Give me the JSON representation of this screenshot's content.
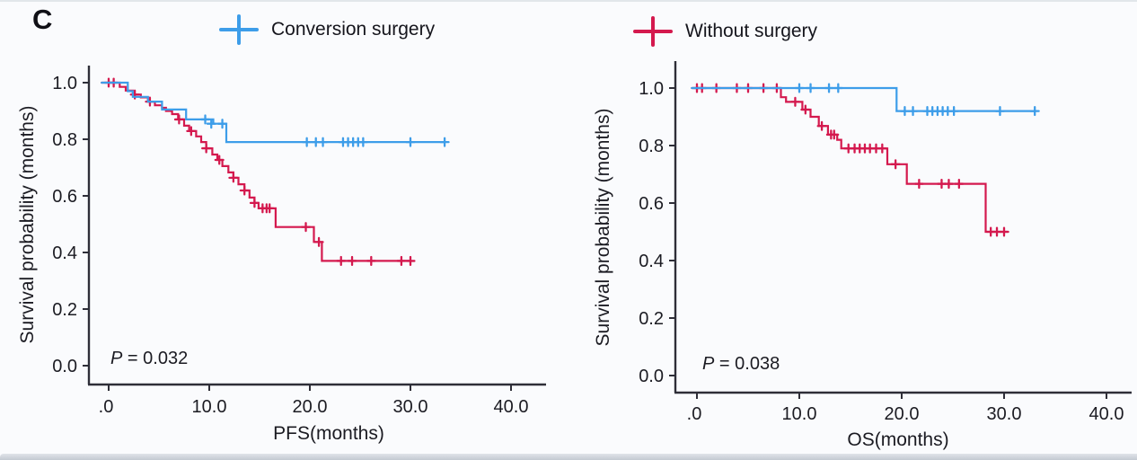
{
  "panel_label": "C",
  "colors": {
    "conversion_surgery": "#3D9DE9",
    "without_surgery": "#D4194E",
    "axis": "#2E2E38",
    "text": "#1B1B22",
    "background": "#FAFBFD"
  },
  "legend": [
    {
      "label": "Conversion surgery",
      "color": "#3D9DE9",
      "marker": "plus"
    },
    {
      "label": "Without surgery",
      "color": "#D4194E",
      "marker": "plus"
    }
  ],
  "chart_data": [
    {
      "type": "line",
      "subtype": "kaplan_meier_step",
      "title": "",
      "xlabel": "PFS(months)",
      "ylabel": "Survival probability (months)",
      "p_label": "P = 0.032",
      "xlim": [
        -2,
        43
      ],
      "ylim": [
        0.0,
        1.0
      ],
      "grid": false,
      "xticks": [
        ".0",
        "10.0",
        "20.0",
        "30.0",
        "40.0"
      ],
      "xtick_values": [
        0,
        10,
        20,
        30,
        40
      ],
      "yticks": [
        "1.0",
        "0.8",
        "0.6",
        "0.4",
        "0.2",
        "0.0"
      ],
      "ytick_values": [
        1.0,
        0.8,
        0.6,
        0.4,
        0.2,
        0.0
      ],
      "series": [
        {
          "name": "Without surgery",
          "color": "#D4194E",
          "steps": [
            [
              -0.7,
              1.0
            ],
            [
              1.1,
              0.985
            ],
            [
              1.7,
              0.972
            ],
            [
              2.4,
              0.958
            ],
            [
              3.2,
              0.948
            ],
            [
              3.9,
              0.933
            ],
            [
              4.6,
              0.92
            ],
            [
              5.3,
              0.911
            ],
            [
              5.7,
              0.9
            ],
            [
              6.3,
              0.889
            ],
            [
              6.9,
              0.87
            ],
            [
              7.5,
              0.848
            ],
            [
              8.0,
              0.829
            ],
            [
              8.7,
              0.81
            ],
            [
              9.2,
              0.79
            ],
            [
              9.7,
              0.768
            ],
            [
              10.3,
              0.746
            ],
            [
              10.8,
              0.727
            ],
            [
              11.3,
              0.705
            ],
            [
              11.9,
              0.683
            ],
            [
              12.4,
              0.664
            ],
            [
              12.9,
              0.641
            ],
            [
              13.5,
              0.619
            ],
            [
              14.0,
              0.594
            ],
            [
              14.5,
              0.575
            ],
            [
              14.9,
              0.556
            ],
            [
              16.6,
              0.49
            ],
            [
              20.4,
              0.437
            ],
            [
              21.2,
              0.37
            ],
            [
              30.0,
              0.37
            ]
          ],
          "censors": [
            [
              0.0,
              1.0
            ],
            [
              0.5,
              1.0
            ],
            [
              2.6,
              0.958
            ],
            [
              4.1,
              0.933
            ],
            [
              7.0,
              0.87
            ],
            [
              8.2,
              0.829
            ],
            [
              9.7,
              0.768
            ],
            [
              11.0,
              0.727
            ],
            [
              12.4,
              0.664
            ],
            [
              13.5,
              0.619
            ],
            [
              14.5,
              0.575
            ],
            [
              15.3,
              0.556
            ],
            [
              15.7,
              0.556
            ],
            [
              16.0,
              0.556
            ],
            [
              19.6,
              0.49
            ],
            [
              20.9,
              0.437
            ],
            [
              23.1,
              0.37
            ],
            [
              24.2,
              0.37
            ],
            [
              26.1,
              0.37
            ],
            [
              29.1,
              0.37
            ],
            [
              30.0,
              0.37
            ]
          ]
        },
        {
          "name": "Conversion surgery",
          "color": "#3D9DE9",
          "steps": [
            [
              -0.7,
              1.0
            ],
            [
              1.9,
              0.97
            ],
            [
              2.4,
              0.95
            ],
            [
              3.9,
              0.933
            ],
            [
              5.3,
              0.905
            ],
            [
              7.7,
              0.87
            ],
            [
              10.4,
              0.855
            ],
            [
              11.7,
              0.79
            ],
            [
              33.4,
              0.79
            ]
          ],
          "censors": [
            [
              9.6,
              0.87
            ],
            [
              10.2,
              0.855
            ],
            [
              11.3,
              0.855
            ],
            [
              19.7,
              0.79
            ],
            [
              20.6,
              0.79
            ],
            [
              21.3,
              0.79
            ],
            [
              23.3,
              0.79
            ],
            [
              23.8,
              0.79
            ],
            [
              24.3,
              0.79
            ],
            [
              24.8,
              0.79
            ],
            [
              25.3,
              0.79
            ],
            [
              30.0,
              0.79
            ],
            [
              33.4,
              0.79
            ]
          ]
        }
      ]
    },
    {
      "type": "line",
      "subtype": "kaplan_meier_step",
      "title": "",
      "xlabel": "OS(months)",
      "ylabel": "Survival probability (months)",
      "p_label": "P = 0.038",
      "xlim": [
        -2,
        43
      ],
      "ylim": [
        0.0,
        1.0
      ],
      "grid": false,
      "xticks": [
        ".0",
        "10.0",
        "20.0",
        "30.0",
        "40.0"
      ],
      "xtick_values": [
        0,
        10,
        20,
        30,
        40
      ],
      "yticks": [
        "1.0",
        "0.8",
        "0.6",
        "0.4",
        "0.2",
        "0.0"
      ],
      "ytick_values": [
        1.0,
        0.8,
        0.6,
        0.4,
        0.2,
        0.0
      ],
      "series": [
        {
          "name": "Without surgery",
          "color": "#D4194E",
          "steps": [
            [
              -0.5,
              1.0
            ],
            [
              8.2,
              0.968
            ],
            [
              8.7,
              0.952
            ],
            [
              10.3,
              0.925
            ],
            [
              11.1,
              0.9
            ],
            [
              11.9,
              0.868
            ],
            [
              12.8,
              0.838
            ],
            [
              13.7,
              0.82
            ],
            [
              14.1,
              0.79
            ],
            [
              18.6,
              0.735
            ],
            [
              20.5,
              0.667
            ],
            [
              28.2,
              0.5
            ],
            [
              30.4,
              0.5
            ]
          ],
          "censors": [
            [
              0.0,
              1.0
            ],
            [
              0.5,
              1.0
            ],
            [
              1.9,
              1.0
            ],
            [
              3.9,
              1.0
            ],
            [
              5.0,
              1.0
            ],
            [
              6.5,
              1.0
            ],
            [
              7.8,
              1.0
            ],
            [
              9.6,
              0.952
            ],
            [
              10.6,
              0.925
            ],
            [
              12.2,
              0.868
            ],
            [
              13.1,
              0.838
            ],
            [
              13.4,
              0.838
            ],
            [
              14.8,
              0.79
            ],
            [
              15.4,
              0.79
            ],
            [
              15.9,
              0.79
            ],
            [
              16.4,
              0.79
            ],
            [
              16.9,
              0.79
            ],
            [
              17.5,
              0.79
            ],
            [
              18.1,
              0.79
            ],
            [
              19.4,
              0.735
            ],
            [
              21.7,
              0.667
            ],
            [
              23.9,
              0.667
            ],
            [
              24.6,
              0.667
            ],
            [
              25.6,
              0.667
            ],
            [
              28.7,
              0.5
            ],
            [
              29.3,
              0.5
            ],
            [
              30.0,
              0.5
            ]
          ]
        },
        {
          "name": "Conversion surgery",
          "color": "#3D9DE9",
          "steps": [
            [
              -0.5,
              1.0
            ],
            [
              19.5,
              0.92
            ],
            [
              33.0,
              0.92
            ]
          ],
          "censors": [
            [
              10.0,
              1.0
            ],
            [
              11.1,
              1.0
            ],
            [
              12.9,
              1.0
            ],
            [
              13.8,
              1.0
            ],
            [
              20.3,
              0.92
            ],
            [
              21.1,
              0.92
            ],
            [
              22.5,
              0.92
            ],
            [
              23.0,
              0.92
            ],
            [
              23.5,
              0.92
            ],
            [
              24.0,
              0.92
            ],
            [
              24.5,
              0.92
            ],
            [
              25.1,
              0.92
            ],
            [
              29.6,
              0.92
            ],
            [
              33.0,
              0.92
            ]
          ]
        }
      ]
    }
  ]
}
